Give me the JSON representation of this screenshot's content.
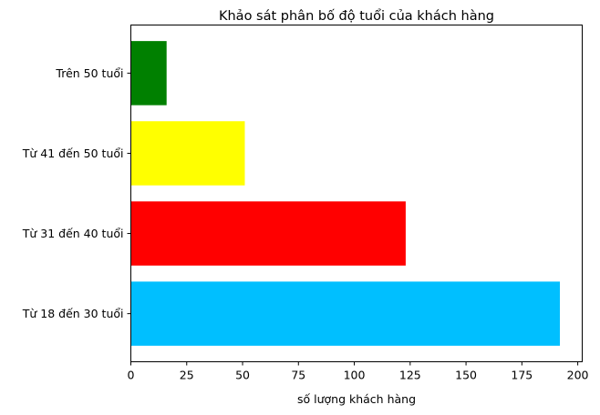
{
  "chart_data": {
    "type": "bar",
    "orientation": "horizontal",
    "title": "Khảo sát phân bố độ tuổi của khách hàng",
    "xlabel": "số lượng khách hàng",
    "ylabel": "",
    "categories": [
      "Từ 18 đến 30 tuổi",
      "Từ 31 đến 40 tuổi",
      "Từ 41 đến 50 tuổi",
      "Trên 50 tuổi"
    ],
    "values": [
      192,
      123,
      51,
      16
    ],
    "colors": [
      "#00bfff",
      "#ff0000",
      "#ffff00",
      "#008000"
    ],
    "xlim": [
      0,
      202
    ],
    "xticks": [
      0,
      25,
      50,
      75,
      100,
      125,
      150,
      175,
      200
    ],
    "grid": false,
    "legend": "none"
  }
}
